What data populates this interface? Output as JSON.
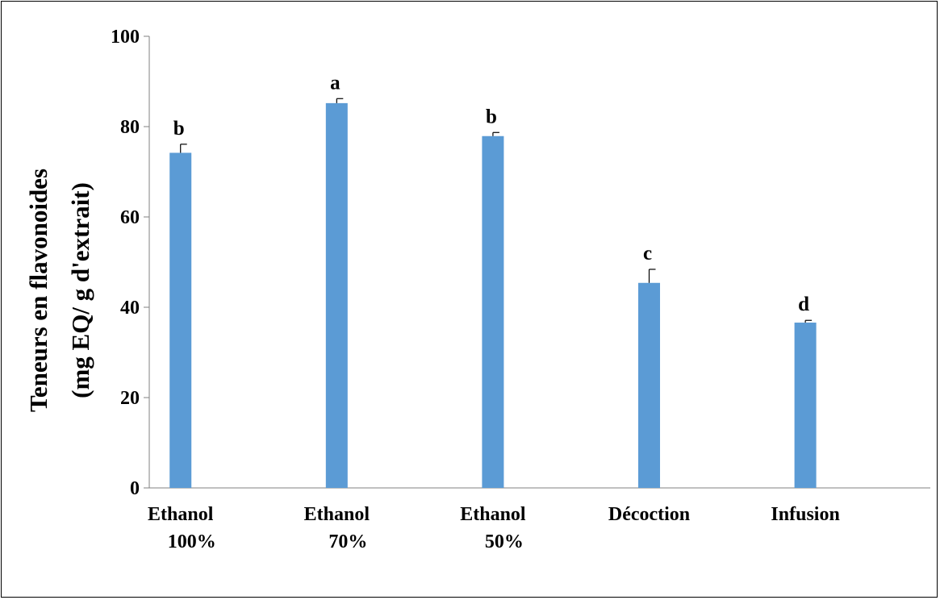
{
  "chart_data": {
    "type": "bar",
    "title": "",
    "xlabel": "",
    "ylabel_lines": [
      "Teneurs en flavonoides",
      "(mg EQ/ g d'extrait)"
    ],
    "ylim": [
      0,
      100
    ],
    "yticks": [
      0,
      20,
      40,
      60,
      80,
      100
    ],
    "grid": false,
    "legend": "none",
    "bar_color": "#5B9BD5",
    "categories": [
      {
        "lines": [
          "Ethanol",
          "100%"
        ]
      },
      {
        "lines": [
          "Ethanol",
          "70%"
        ]
      },
      {
        "lines": [
          "Ethanol",
          "50%"
        ]
      },
      {
        "lines": [
          "Décoction"
        ]
      },
      {
        "lines": [
          "Infusion"
        ]
      }
    ],
    "values": [
      74.2,
      85.2,
      77.9,
      45.4,
      36.6
    ],
    "errors": [
      1.9,
      1.0,
      0.8,
      3.0,
      0.5
    ],
    "letters": [
      "b",
      "a",
      "b",
      "c",
      "d"
    ]
  }
}
